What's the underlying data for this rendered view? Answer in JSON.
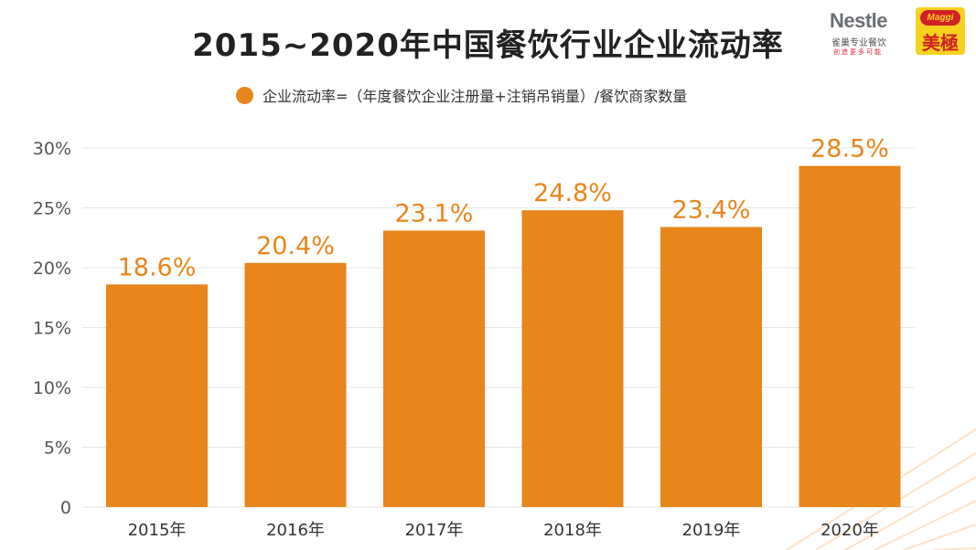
{
  "title": "2015~2020年中国餐饮行业企业流动率",
  "legend_label": "企业流动率=（年度餐饮企业注册量+注销吊销量）/餐饮商家数量",
  "logos": {
    "nestle_name": "Nestle",
    "nestle_cn": "雀巢专业餐饮",
    "nestle_tagline": "创造更多可能",
    "maggi_name": "Maggi",
    "maggi_cn": "美極"
  },
  "colors": {
    "bar": "#e8851b",
    "label": "#e8851b",
    "grid": "#e6e6e6",
    "axis_text": "#555555"
  },
  "chart_data": {
    "type": "bar",
    "title": "2015~2020年中国餐饮行业企业流动率",
    "categories": [
      "2015年",
      "2016年",
      "2017年",
      "2018年",
      "2019年",
      "2020年"
    ],
    "values": [
      18.6,
      20.4,
      23.1,
      24.8,
      23.4,
      28.5
    ],
    "data_labels": [
      "18.6%",
      "20.4%",
      "23.1%",
      "24.8%",
      "23.4%",
      "28.5%"
    ],
    "y_ticks": [
      0,
      5,
      10,
      15,
      20,
      25,
      30
    ],
    "y_tick_labels": [
      "0",
      "5%",
      "10%",
      "15%",
      "20%",
      "25%",
      "30%"
    ],
    "ylim": [
      0,
      30
    ],
    "grid": true,
    "xlabel": "",
    "ylabel": ""
  }
}
